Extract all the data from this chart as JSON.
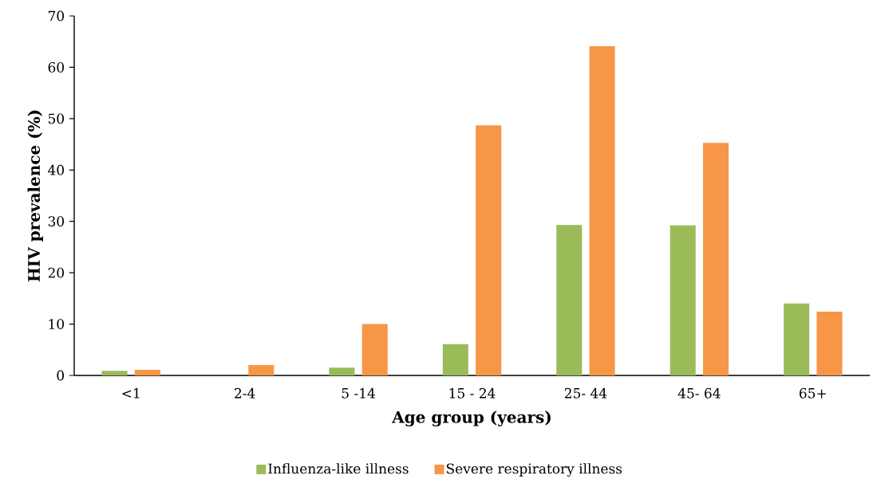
{
  "chart_data": {
    "type": "bar",
    "xlabel": "Age group (years)",
    "ylabel": "HIV prevalence (%)",
    "categories": [
      "<1",
      "2-4",
      "5 -14",
      "15 - 24",
      "25- 44",
      "45- 64",
      "65+"
    ],
    "series": [
      {
        "name": "Influenza-like illness",
        "color": "#9bbb59",
        "values": [
          0.9,
          0,
          1.5,
          6.1,
          29.3,
          29.2,
          14.0
        ]
      },
      {
        "name": "Severe respiratory illness",
        "color": "#f79646",
        "values": [
          1.1,
          2.0,
          10.0,
          48.7,
          64.1,
          45.3,
          12.4
        ]
      }
    ],
    "ylim": [
      0,
      70
    ],
    "yticks": [
      0,
      10,
      20,
      30,
      40,
      50,
      60,
      70
    ],
    "grid": false,
    "legend": "bottom"
  }
}
